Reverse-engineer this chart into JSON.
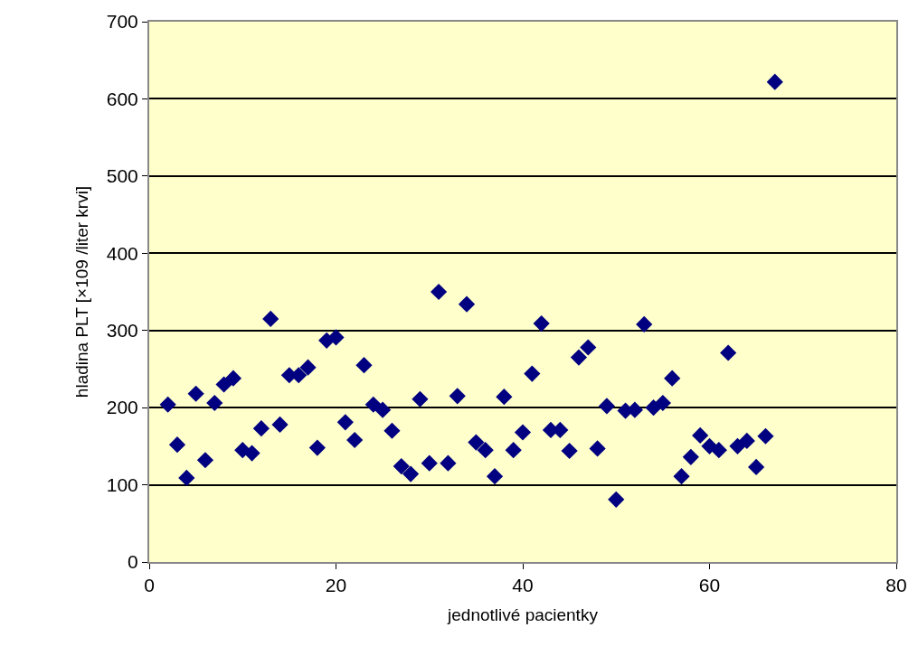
{
  "chart_data": {
    "type": "scatter",
    "xlabel": "jednotlivé pacientky",
    "ylabel": "hladina PLT [×109 /liter krvi]",
    "x": [
      2,
      3,
      4,
      5,
      6,
      7,
      8,
      9,
      10,
      11,
      12,
      13,
      14,
      15,
      16,
      17,
      18,
      19,
      20,
      21,
      22,
      23,
      24,
      25,
      26,
      27,
      28,
      29,
      30,
      31,
      32,
      33,
      34,
      35,
      36,
      37,
      38,
      39,
      40,
      41,
      42,
      43,
      44,
      45,
      46,
      47,
      48,
      49,
      50,
      51,
      52,
      53,
      54,
      55,
      56,
      57,
      58,
      59,
      60,
      61,
      62,
      63,
      64,
      65,
      66,
      67
    ],
    "series": [
      {
        "color": "#000080",
        "values": [
          204,
          152,
          109,
          218,
          132,
          206,
          230,
          238,
          145,
          141,
          173,
          315,
          178,
          242,
          242,
          252,
          148,
          287,
          291,
          181,
          158,
          255,
          204,
          197,
          170,
          124,
          114,
          211,
          128,
          350,
          128,
          215,
          334,
          155,
          145,
          111,
          214,
          145,
          168,
          244,
          309,
          171,
          171,
          144,
          265,
          278,
          147,
          202,
          81,
          196,
          197,
          308,
          200,
          206,
          238,
          111,
          136,
          164,
          150,
          145,
          271,
          150,
          157,
          123,
          163,
          622
        ]
      }
    ],
    "xlim": [
      0,
      80
    ],
    "xticks": [
      0,
      20,
      40,
      60,
      80
    ],
    "ylim": [
      0,
      700
    ],
    "yticks": [
      0,
      100,
      200,
      300,
      400,
      500,
      600,
      700
    ],
    "grid": "y",
    "marker": "diamond",
    "legend": false
  }
}
